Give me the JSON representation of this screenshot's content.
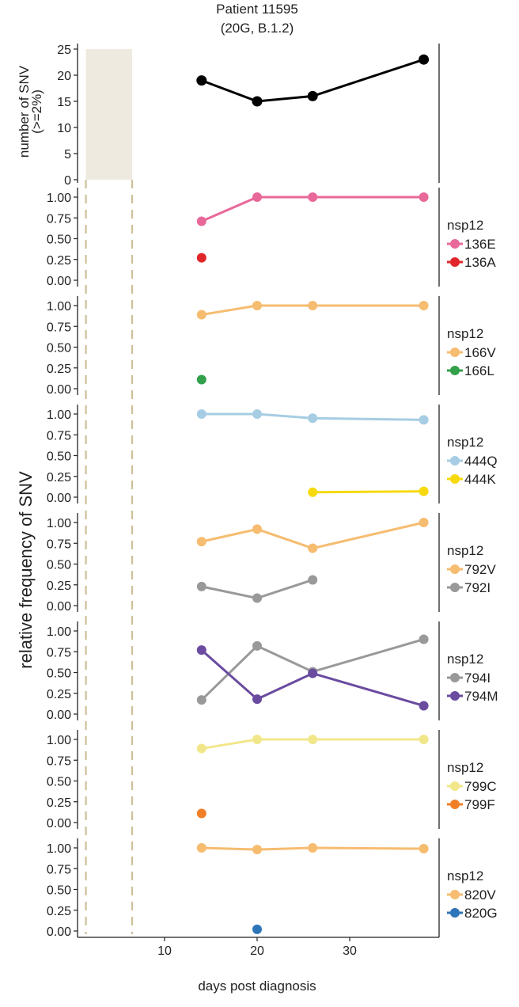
{
  "title_line1": "Patient 11595",
  "title_line2": "(20G, B.1.2)",
  "chart_data": {
    "type": "line",
    "x_axis": {
      "label": "days post diagnosis",
      "range": [
        0,
        39.5
      ],
      "ticks": [
        10,
        20,
        30
      ],
      "tick_labels": [
        "10",
        "20",
        "30"
      ]
    },
    "shaded_window": {
      "from": 1.5,
      "to": 6.5,
      "color": "#eeeadf"
    },
    "top_panel": {
      "ylabel_line1": "number of SNV",
      "ylabel_line2": "(>=2%)",
      "ylim": [
        0,
        25
      ],
      "ticks": [
        0,
        5,
        10,
        15,
        20,
        25
      ],
      "tick_labels": [
        "0",
        "5",
        "10",
        "15",
        "20",
        "25"
      ],
      "series": [
        {
          "name": "SNV count",
          "color": "#000000",
          "x": [
            14,
            20,
            26,
            38
          ],
          "y": [
            19,
            15,
            16,
            23
          ]
        }
      ]
    },
    "frequency_ylabel": "relative frequency of SNV",
    "freq_ylim": [
      0,
      1
    ],
    "freq_ticks": [
      0,
      0.25,
      0.5,
      0.75,
      1.0
    ],
    "freq_tick_labels": [
      "0.00",
      "0.25",
      "0.50",
      "0.75",
      "1.00"
    ],
    "panels": [
      {
        "legend_title": "nsp12",
        "series": [
          {
            "name": "136E",
            "color": "#e8689a",
            "x": [
              14,
              20,
              26,
              38
            ],
            "y": [
              0.71,
              1.0,
              1.0,
              1.0
            ]
          },
          {
            "name": "136A",
            "color": "#e0262a",
            "x": [
              14
            ],
            "y": [
              0.27
            ]
          }
        ]
      },
      {
        "legend_title": "nsp12",
        "series": [
          {
            "name": "166V",
            "color": "#f6bc70",
            "x": [
              14,
              20,
              26,
              38
            ],
            "y": [
              0.89,
              1.0,
              1.0,
              1.0
            ]
          },
          {
            "name": "166L",
            "color": "#33a04c",
            "x": [
              14
            ],
            "y": [
              0.11
            ]
          }
        ]
      },
      {
        "legend_title": "nsp12",
        "series": [
          {
            "name": "444Q",
            "color": "#a6cde3",
            "x": [
              14,
              20,
              26,
              38
            ],
            "y": [
              1.0,
              1.0,
              0.95,
              0.93
            ]
          },
          {
            "name": "444K",
            "color": "#f6d90f",
            "x": [
              26,
              38
            ],
            "y": [
              0.06,
              0.07
            ]
          }
        ]
      },
      {
        "legend_title": "nsp12",
        "series": [
          {
            "name": "792V",
            "color": "#f6bc70",
            "x": [
              14,
              20,
              26,
              38
            ],
            "y": [
              0.77,
              0.92,
              0.69,
              1.0
            ]
          },
          {
            "name": "792I",
            "color": "#999999",
            "x": [
              14,
              20,
              26
            ],
            "y": [
              0.23,
              0.09,
              0.31
            ]
          }
        ]
      },
      {
        "legend_title": "nsp12",
        "series": [
          {
            "name": "794I",
            "color": "#999999",
            "x": [
              14,
              20,
              26,
              38
            ],
            "y": [
              0.17,
              0.82,
              0.51,
              0.9
            ]
          },
          {
            "name": "794M",
            "color": "#6a4ba0",
            "x": [
              14,
              20,
              26,
              38
            ],
            "y": [
              0.77,
              0.18,
              0.49,
              0.1
            ]
          }
        ]
      },
      {
        "legend_title": "nsp12",
        "series": [
          {
            "name": "799C",
            "color": "#f1e78a",
            "x": [
              14,
              20,
              26,
              38
            ],
            "y": [
              0.89,
              1.0,
              1.0,
              1.0
            ]
          },
          {
            "name": "799F",
            "color": "#f07f28",
            "x": [
              14
            ],
            "y": [
              0.11
            ]
          }
        ]
      },
      {
        "legend_title": "nsp12",
        "series": [
          {
            "name": "820V",
            "color": "#f6bc70",
            "x": [
              14,
              20,
              26,
              38
            ],
            "y": [
              1.0,
              0.98,
              1.0,
              0.99
            ]
          },
          {
            "name": "820G",
            "color": "#2e74b8",
            "x": [
              20
            ],
            "y": [
              0.02
            ]
          }
        ]
      }
    ]
  }
}
